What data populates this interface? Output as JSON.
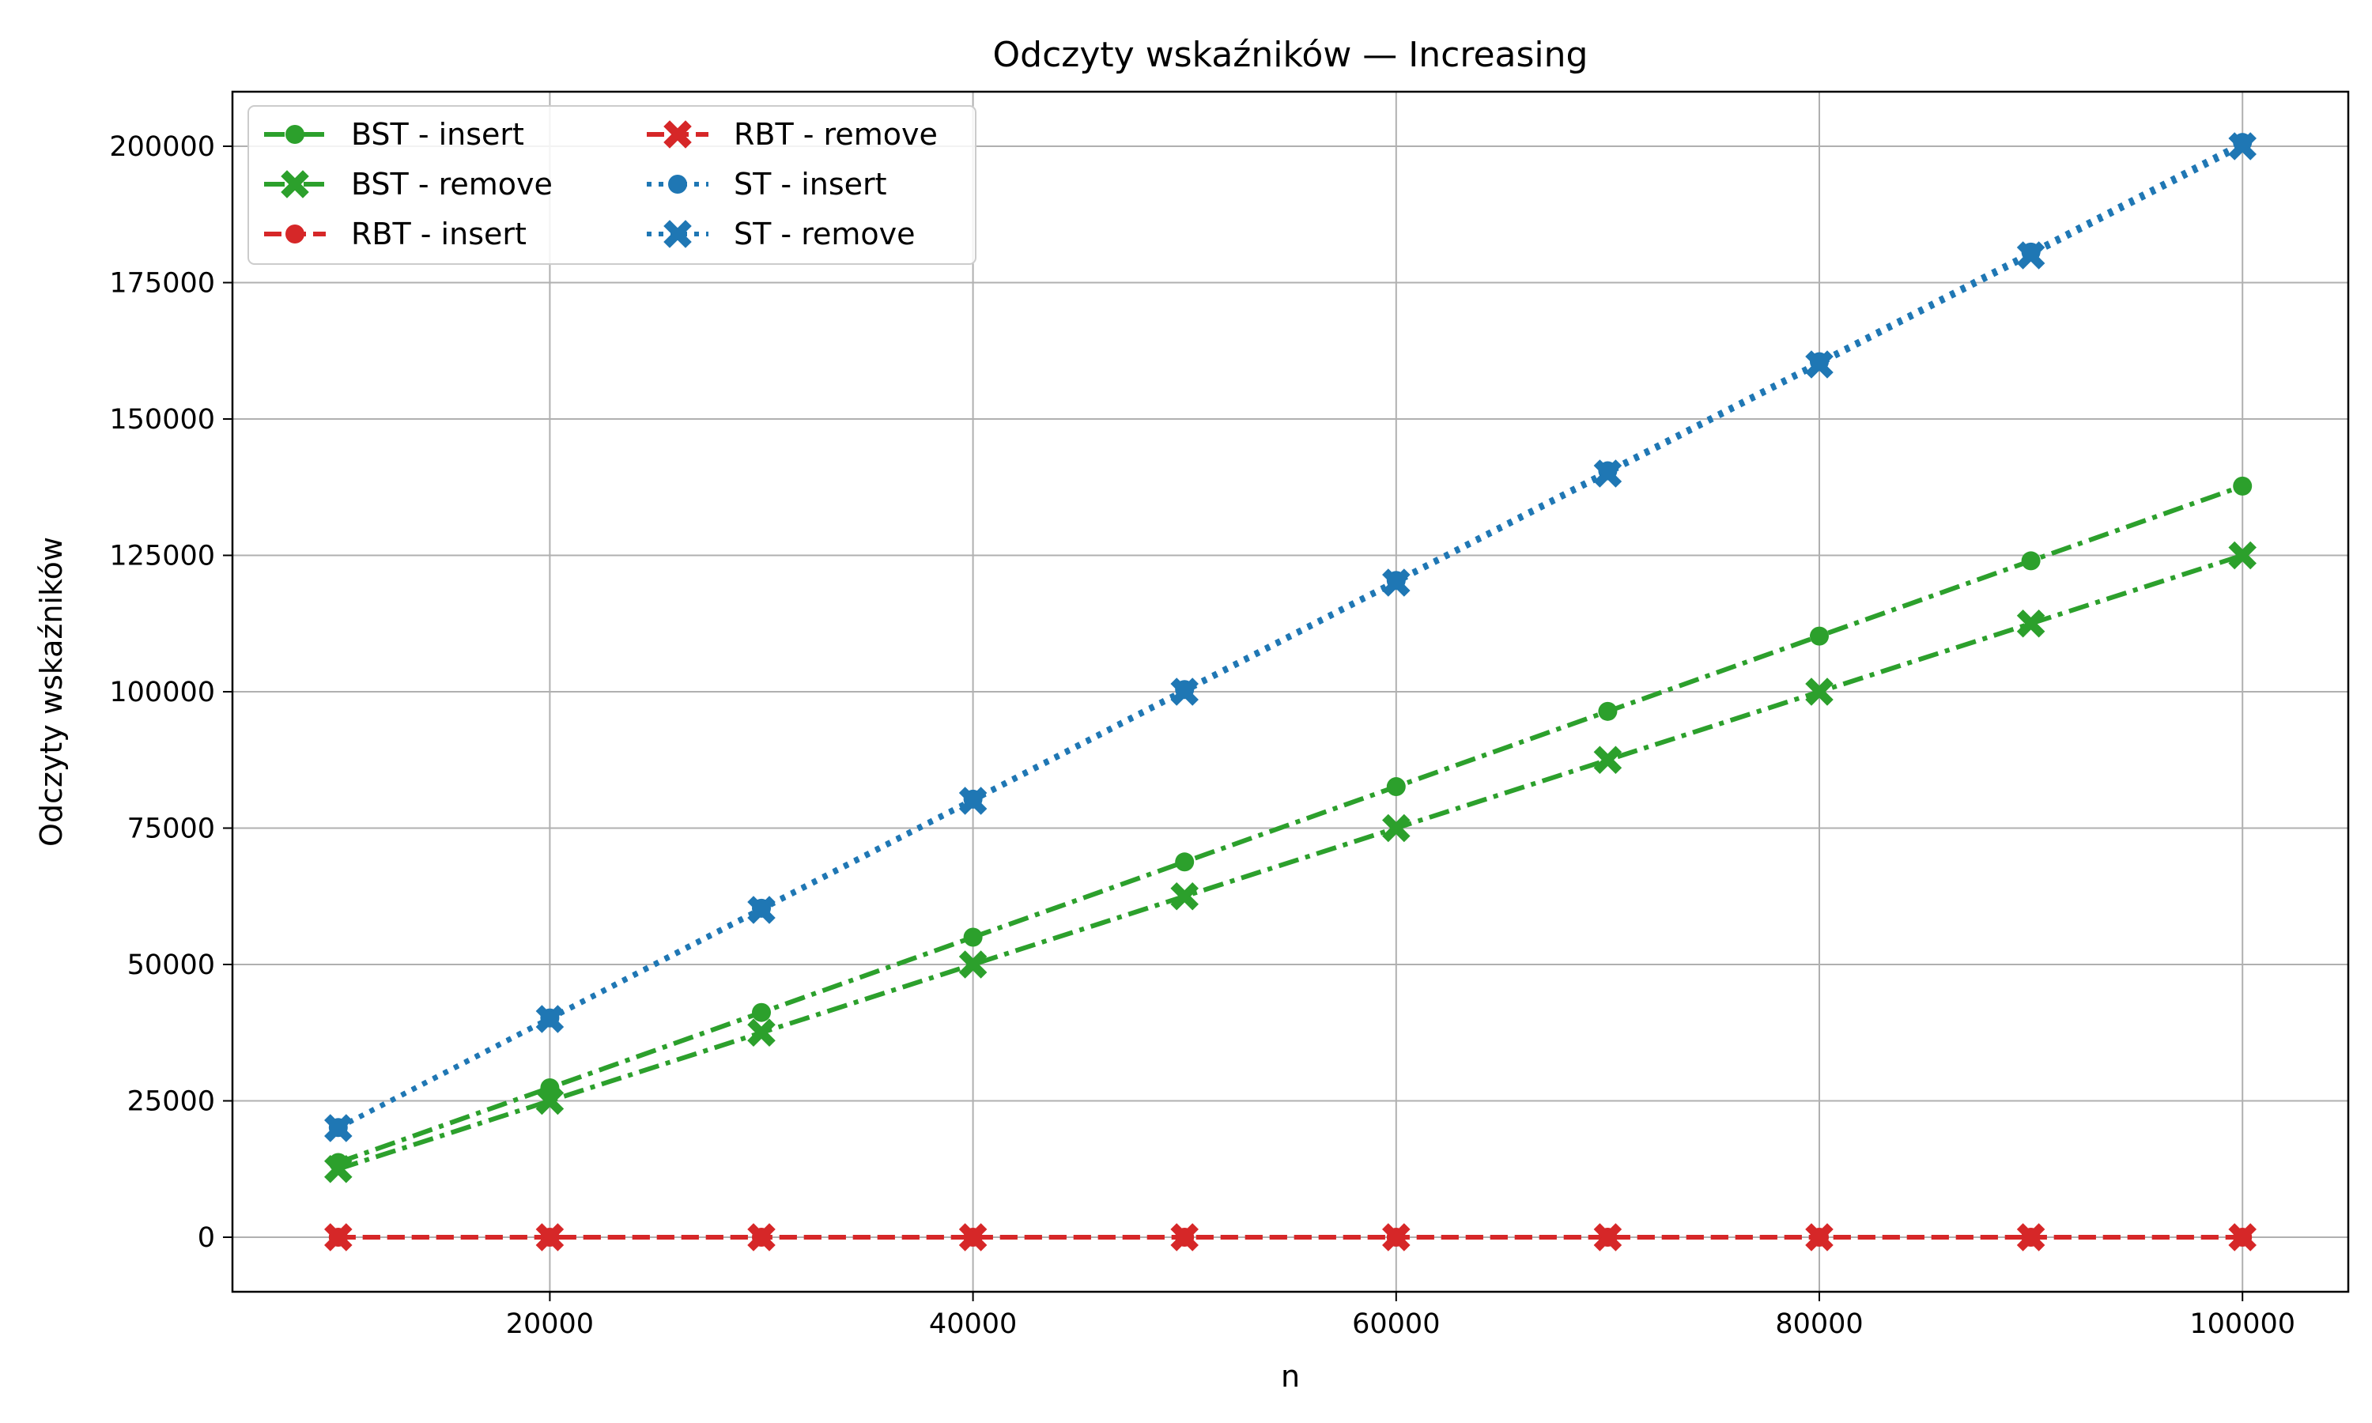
{
  "chart_data": {
    "type": "line",
    "title": "Odczyty wskaźników — Increasing",
    "xlabel": "n",
    "ylabel": "Odczyty wskaźników",
    "xlim": [
      5000,
      105000
    ],
    "ylim": [
      -10000,
      210000
    ],
    "x_ticks": [
      20000,
      40000,
      60000,
      80000,
      100000
    ],
    "y_ticks": [
      0,
      25000,
      50000,
      75000,
      100000,
      125000,
      150000,
      175000,
      200000
    ],
    "grid": true,
    "legend_position": "top-left",
    "x": [
      10000,
      20000,
      30000,
      40000,
      50000,
      60000,
      70000,
      80000,
      90000,
      100000
    ],
    "series": [
      {
        "name": "BST - insert",
        "color": "#2ca02c",
        "line_style": "dashdot",
        "marker": "circle",
        "values": [
          13700,
          27400,
          41200,
          55000,
          68800,
          82600,
          96400,
          110200,
          124000,
          137700
        ]
      },
      {
        "name": "BST - remove",
        "color": "#2ca02c",
        "line_style": "dashdot",
        "marker": "x",
        "values": [
          12500,
          25000,
          37500,
          50000,
          62500,
          75000,
          87500,
          100000,
          112500,
          125000
        ]
      },
      {
        "name": "RBT - insert",
        "color": "#d62728",
        "line_style": "dashed",
        "marker": "circle",
        "values": [
          0,
          0,
          0,
          0,
          0,
          0,
          0,
          0,
          0,
          0
        ]
      },
      {
        "name": "RBT - remove",
        "color": "#d62728",
        "line_style": "dashed",
        "marker": "x",
        "values": [
          0,
          0,
          0,
          0,
          0,
          0,
          0,
          0,
          0,
          0
        ]
      },
      {
        "name": "ST - insert",
        "color": "#1f77b4",
        "line_style": "dotted",
        "marker": "circle",
        "values": [
          20100,
          40200,
          60300,
          80300,
          100400,
          120400,
          140500,
          160500,
          180600,
          200700
        ]
      },
      {
        "name": "ST - remove",
        "color": "#1f77b4",
        "line_style": "dotted",
        "marker": "x",
        "values": [
          20000,
          40000,
          60000,
          80000,
          100000,
          120000,
          140000,
          160000,
          180000,
          200000
        ]
      }
    ]
  }
}
